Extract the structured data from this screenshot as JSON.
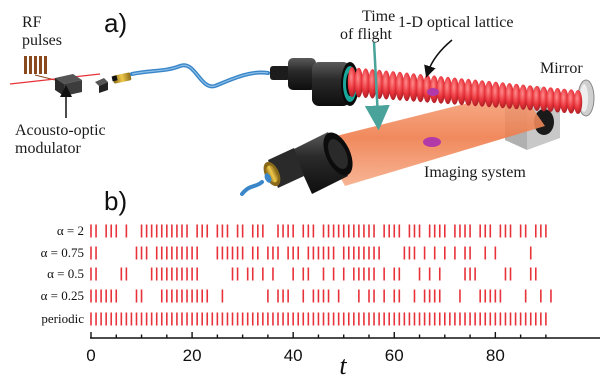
{
  "panel_a": {
    "panel_label": "a)",
    "labels": {
      "rf_line1": "RF",
      "rf_line2": "pulses",
      "aom_line1": "Acousto-optic",
      "aom_line2": "modulator",
      "tof_line1": "Time",
      "tof_line2": "of flight",
      "lattice": "1-D optical lattice",
      "mirror": "Mirror",
      "imaging": "Imaging system"
    },
    "colors": {
      "lattice": "#e8323a",
      "fiber": "#3a86c8",
      "imaging_beam": "#f08a5a",
      "tof_arrow": "#4aa39a",
      "atom_cloud": "#b23aa8"
    }
  },
  "panel_b": {
    "panel_label": "b)",
    "chart_data": {
      "type": "scatter",
      "xlabel": "t",
      "xlim": [
        0,
        92
      ],
      "xticks": [
        0,
        20,
        40,
        60,
        80
      ],
      "series": [
        {
          "name": "α = 2",
          "x": [
            0,
            1,
            3,
            4,
            5,
            7,
            10,
            11,
            12,
            13,
            14,
            15,
            16,
            17,
            18,
            19,
            21,
            22,
            23,
            25,
            26,
            27,
            29,
            30,
            32,
            33,
            34,
            37,
            38,
            39,
            40,
            42,
            43,
            44,
            46,
            47,
            48,
            49,
            50,
            51,
            52,
            53,
            54,
            55,
            56,
            58,
            59,
            60,
            61,
            63,
            64,
            65,
            67,
            68,
            69,
            70,
            72,
            73,
            74,
            75,
            77,
            78,
            79,
            81,
            82,
            83,
            85,
            86,
            88,
            89,
            90
          ]
        },
        {
          "name": "α = 0.75",
          "x": [
            0,
            1,
            9,
            10,
            11,
            13,
            14,
            15,
            16,
            17,
            18,
            19,
            20,
            21,
            25,
            26,
            27,
            28,
            29,
            30,
            32,
            33,
            35,
            36,
            37,
            39,
            40,
            41,
            43,
            44,
            45,
            46,
            47,
            48,
            50,
            51,
            52,
            53,
            54,
            55,
            56,
            57,
            62,
            63,
            64,
            66,
            68,
            70,
            72,
            74,
            75,
            78,
            80,
            87
          ]
        },
        {
          "name": "α = 0.5",
          "x": [
            0,
            1,
            6,
            7,
            12,
            13,
            14,
            15,
            16,
            17,
            18,
            19,
            20,
            21,
            28,
            29,
            31,
            32,
            34,
            36,
            40,
            42,
            43,
            46,
            48,
            50,
            52,
            53,
            54,
            55,
            56,
            58,
            60,
            61,
            65,
            67,
            69,
            74,
            75,
            76,
            82,
            83,
            87,
            88
          ]
        },
        {
          "name": "α = 0.25",
          "x": [
            0,
            1,
            2,
            3,
            4,
            5,
            9,
            10,
            14,
            15,
            16,
            17,
            18,
            19,
            20,
            21,
            22,
            23,
            26,
            35,
            37,
            38,
            39,
            42,
            44,
            45,
            46,
            47,
            49,
            53,
            55,
            56,
            58,
            60,
            61,
            64,
            66,
            67,
            68,
            69,
            73,
            77,
            78,
            79,
            80,
            81,
            86,
            89,
            91
          ]
        },
        {
          "name": "periodic",
          "x": [
            0,
            1,
            2,
            3,
            4,
            5,
            6,
            7,
            8,
            9,
            10,
            11,
            12,
            13,
            14,
            15,
            16,
            17,
            18,
            19,
            20,
            21,
            22,
            23,
            24,
            25,
            26,
            27,
            28,
            29,
            30,
            31,
            32,
            33,
            34,
            35,
            36,
            37,
            38,
            39,
            40,
            41,
            42,
            43,
            44,
            45,
            46,
            47,
            48,
            49,
            50,
            51,
            52,
            53,
            54,
            55,
            56,
            57,
            58,
            59,
            60,
            61,
            62,
            63,
            64,
            65,
            66,
            67,
            68,
            69,
            70,
            71,
            72,
            73,
            74,
            75,
            76,
            77,
            78,
            79,
            80,
            81,
            82,
            83,
            84,
            85,
            86,
            87,
            88,
            89,
            90
          ]
        }
      ]
    }
  }
}
